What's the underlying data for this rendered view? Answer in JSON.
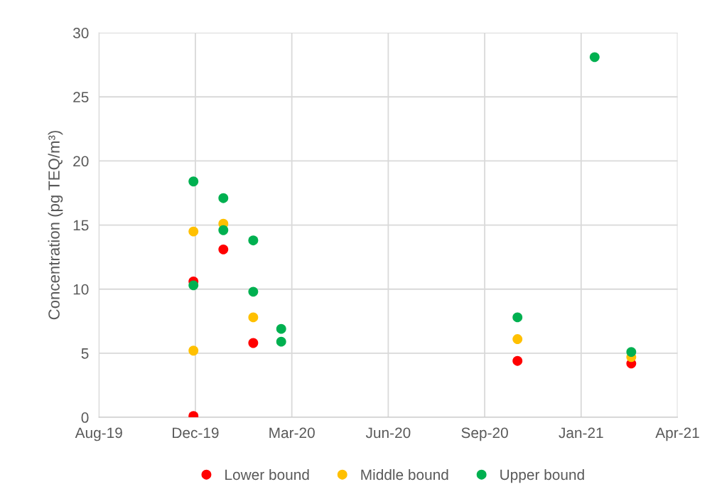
{
  "chart_data": {
    "type": "scatter",
    "ylabel": "Concentration (pg TEQ/m³)",
    "xlim": [
      "2019-08-26",
      "2021-04-17"
    ],
    "xticks": [
      {
        "value": "2019-08-26",
        "label": "Aug-19"
      },
      {
        "value": "2019-12-04",
        "label": "Dec-19"
      },
      {
        "value": "2020-03-13",
        "label": "Mar-20"
      },
      {
        "value": "2020-06-21",
        "label": "Jun-20"
      },
      {
        "value": "2020-09-29",
        "label": "Sep-20"
      },
      {
        "value": "2021-01-07",
        "label": "Jan-21"
      },
      {
        "value": "2021-04-17",
        "label": "Apr-21"
      }
    ],
    "ylim": [
      0,
      30
    ],
    "yticks": [
      0,
      5,
      10,
      15,
      20,
      25,
      30
    ],
    "grid": true,
    "legend": "bottom",
    "marker": "circle",
    "series": [
      {
        "name": "Lower bound",
        "color": "#ff0000",
        "x": [
          "2019-12-02",
          "2019-12-02",
          "2020-01-02",
          "2020-02-02",
          "2020-11-02",
          "2021-02-28"
        ],
        "values": [
          0.1,
          10.6,
          13.1,
          5.8,
          4.4,
          4.2
        ]
      },
      {
        "name": "Middle bound",
        "color": "#ffc000",
        "x": [
          "2019-12-02",
          "2019-12-02",
          "2020-01-02",
          "2020-02-02",
          "2020-11-02",
          "2021-02-28"
        ],
        "values": [
          14.5,
          5.2,
          15.1,
          7.8,
          6.1,
          4.7
        ]
      },
      {
        "name": "Upper bound",
        "color": "#00b050",
        "x": [
          "2019-12-02",
          "2019-12-02",
          "2020-01-02",
          "2020-01-02",
          "2020-02-02",
          "2020-02-02",
          "2020-03-02",
          "2020-03-02",
          "2020-11-02",
          "2021-01-21",
          "2021-02-28"
        ],
        "values": [
          18.4,
          10.3,
          17.1,
          14.6,
          13.8,
          9.8,
          6.9,
          5.9,
          7.8,
          28.1,
          5.1
        ]
      }
    ]
  }
}
